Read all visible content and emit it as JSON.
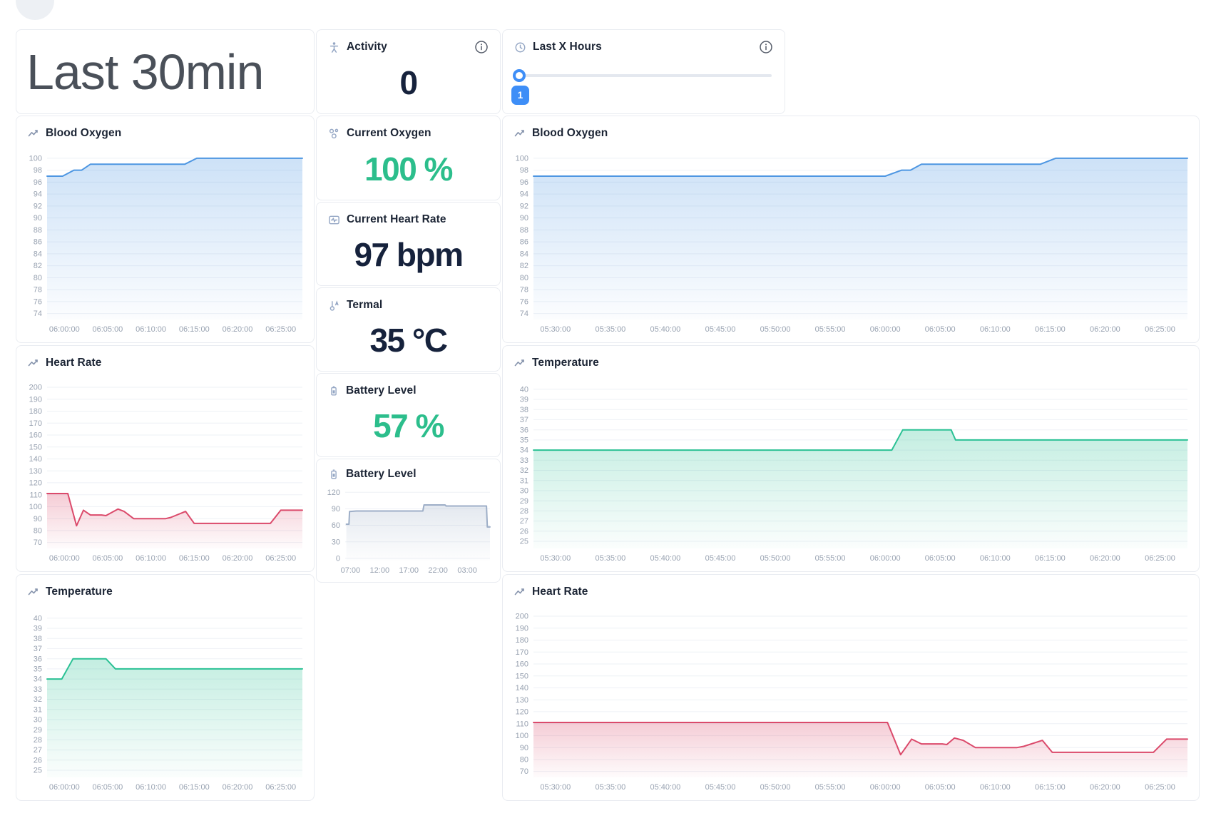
{
  "header": {
    "range_title": "Last 30min"
  },
  "activity_panel": {
    "title": "Activity",
    "value": "0"
  },
  "hours_panel": {
    "title": "Last X Hours",
    "slider_value": "1"
  },
  "stat_panels": [
    {
      "title": "Current Oxygen",
      "value": "100 %",
      "value_color": "#2cbe8c",
      "icon": "oxygen-icon"
    },
    {
      "title": "Current Heart Rate",
      "value": "97 bpm",
      "value_color": "#16223c",
      "icon": "heart-rate-icon"
    },
    {
      "title": "Termal",
      "value": "35 °C",
      "value_color": "#16223c",
      "icon": "thermometer-icon"
    },
    {
      "title": "Battery Level",
      "value": "57 %",
      "value_color": "#2cbe8c",
      "icon": "battery-icon"
    }
  ],
  "colors": {
    "accent_blue": "#3e8ef7",
    "green_value": "#2cbe8c",
    "navy_value": "#16223c",
    "axis_label": "#98a2b1",
    "gridline": "#eef1f6",
    "panel_border": "#e9ecf1"
  },
  "chart_data": [
    {
      "id": "left-blood-oxygen",
      "type": "area",
      "title": "Blood Oxygen",
      "line_color": "#4d96e2",
      "ylabel": "",
      "xlabel": "",
      "grid": true,
      "legend": false,
      "ylim": [
        73,
        101.3
      ],
      "yticks": [
        74,
        76,
        78,
        80,
        82,
        84,
        86,
        88,
        90,
        92,
        94,
        96,
        98,
        100
      ],
      "xlim": [
        -2,
        27.5
      ],
      "xticks": [
        {
          "x": 0,
          "label": "06:00:00"
        },
        {
          "x": 5,
          "label": "06:05:00"
        },
        {
          "x": 10,
          "label": "06:10:00"
        },
        {
          "x": 15,
          "label": "06:15:00"
        },
        {
          "x": 20,
          "label": "06:20:00"
        },
        {
          "x": 25,
          "label": "06:25:00"
        }
      ],
      "margins": {
        "l": 37,
        "t": 8,
        "r": 8,
        "b": 26
      },
      "points": [
        [
          -2,
          97
        ],
        [
          -0.2,
          97
        ],
        [
          1.1,
          98
        ],
        [
          2,
          98
        ],
        [
          3,
          99
        ],
        [
          13.9,
          99
        ],
        [
          15.3,
          100
        ],
        [
          27.5,
          100
        ]
      ]
    },
    {
      "id": "left-heart-rate",
      "type": "area",
      "title": "Heart Rate",
      "line_color": "#db4a6b",
      "ylabel": "",
      "xlabel": "",
      "grid": true,
      "legend": false,
      "ylim": [
        65,
        206
      ],
      "yticks": [
        70,
        80,
        90,
        100,
        110,
        120,
        130,
        140,
        150,
        160,
        170,
        180,
        190,
        200
      ],
      "xlim": [
        -2,
        27.5
      ],
      "xticks": [
        {
          "x": 0,
          "label": "06:00:00"
        },
        {
          "x": 5,
          "label": "06:05:00"
        },
        {
          "x": 10,
          "label": "06:10:00"
        },
        {
          "x": 15,
          "label": "06:15:00"
        },
        {
          "x": 20,
          "label": "06:20:00"
        },
        {
          "x": 25,
          "label": "06:25:00"
        }
      ],
      "margins": {
        "l": 37,
        "t": 8,
        "r": 8,
        "b": 26
      },
      "points": [
        [
          -2,
          111
        ],
        [
          0.4,
          111
        ],
        [
          1.4,
          84
        ],
        [
          2.2,
          97
        ],
        [
          3,
          93
        ],
        [
          4.3,
          93
        ],
        [
          4.8,
          92.5
        ],
        [
          6.2,
          98
        ],
        [
          6.9,
          96
        ],
        [
          8,
          90
        ],
        [
          11.7,
          90
        ],
        [
          12.3,
          91
        ],
        [
          14,
          96
        ],
        [
          15,
          86
        ],
        [
          23.8,
          86
        ],
        [
          25,
          97
        ],
        [
          27.5,
          97
        ]
      ]
    },
    {
      "id": "left-temperature",
      "type": "area",
      "title": "Temperature",
      "line_color": "#2bc194",
      "ylabel": "",
      "xlabel": "",
      "grid": true,
      "legend": false,
      "ylim": [
        24.3,
        40.9
      ],
      "yticks": [
        25,
        26,
        27,
        28,
        29,
        30,
        31,
        32,
        33,
        34,
        35,
        36,
        37,
        38,
        39,
        40
      ],
      "xlim": [
        -2,
        27.5
      ],
      "xticks": [
        {
          "x": 0,
          "label": "06:00:00"
        },
        {
          "x": 5,
          "label": "06:05:00"
        },
        {
          "x": 10,
          "label": "06:10:00"
        },
        {
          "x": 15,
          "label": "06:15:00"
        },
        {
          "x": 20,
          "label": "06:20:00"
        },
        {
          "x": 25,
          "label": "06:25:00"
        }
      ],
      "margins": {
        "l": 37,
        "t": 8,
        "r": 8,
        "b": 26
      },
      "points": [
        [
          -2,
          34
        ],
        [
          -0.3,
          34
        ],
        [
          1,
          36
        ],
        [
          4.8,
          36
        ],
        [
          5.9,
          35
        ],
        [
          27.5,
          35
        ]
      ]
    },
    {
      "id": "right-blood-oxygen",
      "type": "area",
      "title": "Blood Oxygen",
      "line_color": "#4d96e2",
      "ylabel": "",
      "xlabel": "",
      "grid": true,
      "legend": false,
      "ylim": [
        73,
        101.3
      ],
      "yticks": [
        74,
        76,
        78,
        80,
        82,
        84,
        86,
        88,
        90,
        92,
        94,
        96,
        98,
        100
      ],
      "xlim": [
        -2,
        57.5
      ],
      "xticks": [
        {
          "x": 0,
          "label": "05:30:00"
        },
        {
          "x": 5,
          "label": "05:35:00"
        },
        {
          "x": 10,
          "label": "05:40:00"
        },
        {
          "x": 15,
          "label": "05:45:00"
        },
        {
          "x": 20,
          "label": "05:50:00"
        },
        {
          "x": 25,
          "label": "05:55:00"
        },
        {
          "x": 30,
          "label": "06:00:00"
        },
        {
          "x": 35,
          "label": "06:05:00"
        },
        {
          "x": 40,
          "label": "06:10:00"
        },
        {
          "x": 45,
          "label": "06:15:00"
        },
        {
          "x": 50,
          "label": "06:20:00"
        },
        {
          "x": 55,
          "label": "06:25:00"
        }
      ],
      "margins": {
        "l": 37,
        "t": 8,
        "r": 8,
        "b": 26
      },
      "points": [
        [
          -2,
          97
        ],
        [
          30,
          97
        ],
        [
          31.5,
          98
        ],
        [
          32.3,
          98
        ],
        [
          33.3,
          99
        ],
        [
          44.1,
          99
        ],
        [
          45.5,
          100
        ],
        [
          57.5,
          100
        ]
      ]
    },
    {
      "id": "right-temperature",
      "type": "area",
      "title": "Temperature",
      "line_color": "#2bc194",
      "ylabel": "",
      "xlabel": "",
      "grid": true,
      "legend": false,
      "ylim": [
        24.3,
        40.9
      ],
      "yticks": [
        25,
        26,
        27,
        28,
        29,
        30,
        31,
        32,
        33,
        34,
        35,
        36,
        37,
        38,
        39,
        40
      ],
      "xlim": [
        -2,
        57.5
      ],
      "xticks": [
        {
          "x": 0,
          "label": "05:30:00"
        },
        {
          "x": 5,
          "label": "05:35:00"
        },
        {
          "x": 10,
          "label": "05:40:00"
        },
        {
          "x": 15,
          "label": "05:45:00"
        },
        {
          "x": 20,
          "label": "05:50:00"
        },
        {
          "x": 25,
          "label": "05:55:00"
        },
        {
          "x": 30,
          "label": "06:00:00"
        },
        {
          "x": 35,
          "label": "06:05:00"
        },
        {
          "x": 40,
          "label": "06:10:00"
        },
        {
          "x": 45,
          "label": "06:15:00"
        },
        {
          "x": 50,
          "label": "06:20:00"
        },
        {
          "x": 55,
          "label": "06:25:00"
        }
      ],
      "margins": {
        "l": 37,
        "t": 8,
        "r": 8,
        "b": 26
      },
      "points": [
        [
          -2,
          34
        ],
        [
          30.6,
          34
        ],
        [
          31.6,
          36
        ],
        [
          36,
          36
        ],
        [
          36.4,
          35
        ],
        [
          57.5,
          35
        ]
      ]
    },
    {
      "id": "right-heart-rate",
      "type": "area",
      "title": "Heart Rate",
      "line_color": "#db4a6b",
      "ylabel": "",
      "xlabel": "",
      "grid": true,
      "legend": false,
      "ylim": [
        65,
        206
      ],
      "yticks": [
        70,
        80,
        90,
        100,
        110,
        120,
        130,
        140,
        150,
        160,
        170,
        180,
        190,
        200
      ],
      "xlim": [
        -2,
        57.5
      ],
      "xticks": [
        {
          "x": 0,
          "label": "05:30:00"
        },
        {
          "x": 5,
          "label": "05:35:00"
        },
        {
          "x": 10,
          "label": "05:40:00"
        },
        {
          "x": 15,
          "label": "05:45:00"
        },
        {
          "x": 20,
          "label": "05:50:00"
        },
        {
          "x": 25,
          "label": "05:55:00"
        },
        {
          "x": 30,
          "label": "06:00:00"
        },
        {
          "x": 35,
          "label": "06:05:00"
        },
        {
          "x": 40,
          "label": "06:10:00"
        },
        {
          "x": 45,
          "label": "06:15:00"
        },
        {
          "x": 50,
          "label": "06:20:00"
        },
        {
          "x": 55,
          "label": "06:25:00"
        }
      ],
      "margins": {
        "l": 37,
        "t": 8,
        "r": 8,
        "b": 26
      },
      "points": [
        [
          -2,
          111
        ],
        [
          30.2,
          111
        ],
        [
          31.4,
          84
        ],
        [
          32.4,
          97
        ],
        [
          33.3,
          93
        ],
        [
          35.2,
          93
        ],
        [
          35.6,
          92.5
        ],
        [
          36.3,
          98
        ],
        [
          37.1,
          96
        ],
        [
          38.2,
          90
        ],
        [
          42,
          90
        ],
        [
          42.6,
          91
        ],
        [
          44.3,
          96
        ],
        [
          45.2,
          86
        ],
        [
          54.4,
          86
        ],
        [
          55.6,
          97
        ],
        [
          57.5,
          97
        ]
      ]
    },
    {
      "id": "battery-level",
      "type": "area",
      "title": "Battery Level",
      "line_color": "#9daec7",
      "ylabel": "",
      "xlabel": "",
      "grid": true,
      "legend": false,
      "ylim": [
        -4,
        128
      ],
      "yticks": [
        0,
        30,
        60,
        90,
        120
      ],
      "xlim": [
        6.1,
        30.9
      ],
      "xticks": [
        {
          "x": 7,
          "label": "07:00"
        },
        {
          "x": 12,
          "label": "12:00"
        },
        {
          "x": 17,
          "label": "17:00"
        },
        {
          "x": 22,
          "label": "22:00"
        },
        {
          "x": 27,
          "label": "03:00"
        }
      ],
      "margins": {
        "l": 36,
        "t": 6,
        "r": 6,
        "b": 26
      },
      "points": [
        [
          6.3,
          62
        ],
        [
          6.75,
          62
        ],
        [
          6.85,
          85
        ],
        [
          8,
          86
        ],
        [
          19.4,
          86
        ],
        [
          19.6,
          97
        ],
        [
          23.2,
          97
        ],
        [
          23.4,
          95
        ],
        [
          30.3,
          95
        ],
        [
          30.45,
          57
        ],
        [
          30.9,
          57
        ]
      ]
    }
  ]
}
